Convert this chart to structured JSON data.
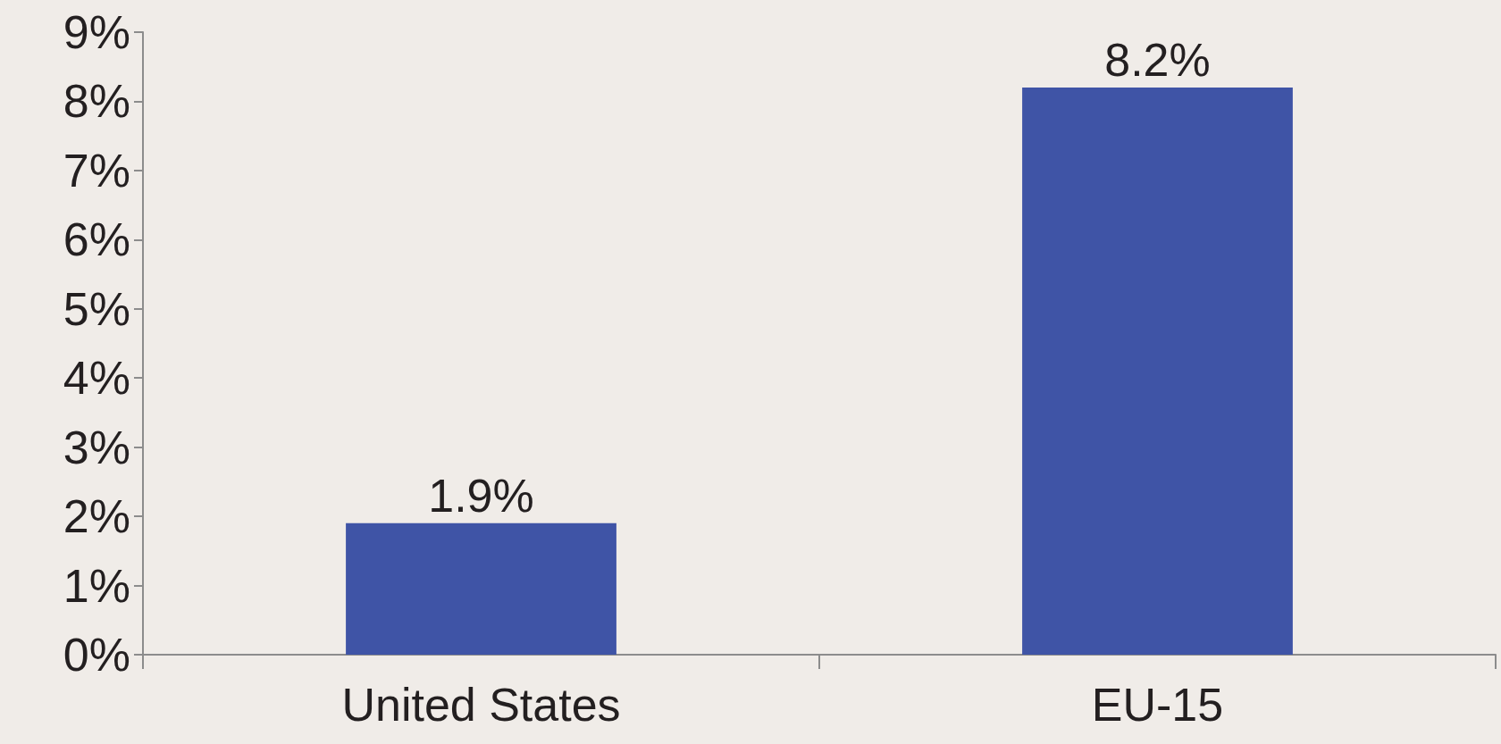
{
  "chart_data": {
    "type": "bar",
    "categories": [
      "United States",
      "EU-15"
    ],
    "values": [
      1.9,
      8.2
    ],
    "color": "#3f54a6",
    "value_labels": [
      "1.9%",
      "8.2%"
    ],
    "ylim": [
      0,
      9
    ],
    "yticks": [
      {
        "value": 0,
        "label": "0%"
      },
      {
        "value": 1,
        "label": "1%"
      },
      {
        "value": 2,
        "label": "2%"
      },
      {
        "value": 3,
        "label": "3%"
      },
      {
        "value": 4,
        "label": "4%"
      },
      {
        "value": 5,
        "label": "5%"
      },
      {
        "value": 6,
        "label": "6%"
      },
      {
        "value": 7,
        "label": "7%"
      },
      {
        "value": 8,
        "label": "8%"
      },
      {
        "value": 9,
        "label": "9%"
      }
    ],
    "grid": false
  }
}
